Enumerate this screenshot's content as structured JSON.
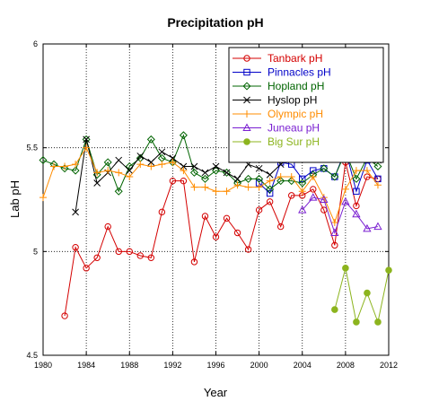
{
  "chart_data": {
    "type": "line",
    "title": "Precipitation pH",
    "xlabel": "Year",
    "ylabel": "Lab pH",
    "xlim": [
      1980,
      2012
    ],
    "ylim": [
      4.5,
      6
    ],
    "xticks": [
      1980,
      1984,
      1988,
      1992,
      1996,
      2000,
      2004,
      2008,
      2012
    ],
    "xtick_labels": [
      "1980",
      "1984",
      "1988",
      "1992",
      "1996",
      "2000",
      "2004",
      "2008",
      "2012"
    ],
    "yticks": [
      4.5,
      5,
      5.5,
      6
    ],
    "ytick_labels": [
      "4.5",
      "5",
      "5.5",
      "6"
    ],
    "grid": "dotted, at major ticks",
    "legend_position": "top-right",
    "series": [
      {
        "name": "Tanbark pH",
        "color": "#d40000",
        "marker": "circle",
        "points": [
          [
            1982,
            4.69
          ],
          [
            1983,
            5.02
          ],
          [
            1984,
            4.92
          ],
          [
            1985,
            4.97
          ],
          [
            1986,
            5.12
          ],
          [
            1987,
            5.0
          ],
          [
            1988,
            5.0
          ],
          [
            1989,
            4.98
          ],
          [
            1990,
            4.97
          ],
          [
            1991,
            5.19
          ],
          [
            1992,
            5.34
          ],
          [
            1993,
            5.34
          ],
          [
            1994,
            4.95
          ],
          [
            1995,
            5.17
          ],
          [
            1996,
            5.07
          ],
          [
            1997,
            5.16
          ],
          [
            1998,
            5.09
          ],
          [
            1999,
            5.01
          ],
          [
            2000,
            5.2
          ],
          [
            2001,
            5.24
          ],
          [
            2002,
            5.12
          ],
          [
            2003,
            5.27
          ],
          [
            2004,
            5.27
          ],
          [
            2005,
            5.3
          ],
          [
            2006,
            5.2
          ],
          [
            2007,
            5.03
          ],
          [
            2008,
            5.43
          ],
          [
            2009,
            5.22
          ],
          [
            2010,
            5.36
          ],
          [
            2011,
            5.35
          ]
        ]
      },
      {
        "name": "Pinnacles pH",
        "color": "#0000c8",
        "marker": "square",
        "points": [
          [
            2000,
            5.33
          ],
          [
            2001,
            5.28
          ],
          [
            2002,
            5.43
          ],
          [
            2003,
            5.42
          ],
          [
            2004,
            5.35
          ],
          [
            2005,
            5.39
          ],
          [
            2006,
            5.4
          ],
          [
            2007,
            5.36
          ],
          [
            2008,
            5.49
          ],
          [
            2009,
            5.29
          ],
          [
            2010,
            5.44
          ],
          [
            2011,
            5.35
          ]
        ]
      },
      {
        "name": "Hopland pH",
        "color": "#006400",
        "marker": "diamond",
        "points": [
          [
            1980,
            5.44
          ],
          [
            1981,
            5.42
          ],
          [
            1982,
            5.4
          ],
          [
            1983,
            5.39
          ],
          [
            1984,
            5.54
          ],
          [
            1985,
            5.37
          ],
          [
            1986,
            5.43
          ],
          [
            1987,
            5.29
          ],
          [
            1988,
            5.41
          ],
          [
            1989,
            5.45
          ],
          [
            1990,
            5.54
          ],
          [
            1991,
            5.45
          ],
          [
            1992,
            5.43
          ],
          [
            1993,
            5.56
          ],
          [
            1994,
            5.38
          ],
          [
            1995,
            5.35
          ],
          [
            1996,
            5.39
          ],
          [
            1997,
            5.38
          ],
          [
            1998,
            5.33
          ],
          [
            1999,
            5.35
          ],
          [
            2000,
            5.35
          ],
          [
            2001,
            5.3
          ],
          [
            2002,
            5.34
          ],
          [
            2003,
            5.34
          ],
          [
            2004,
            5.33
          ],
          [
            2005,
            5.37
          ],
          [
            2006,
            5.4
          ],
          [
            2007,
            5.36
          ],
          [
            2008,
            5.48
          ],
          [
            2009,
            5.35
          ],
          [
            2010,
            5.45
          ],
          [
            2011,
            5.41
          ]
        ]
      },
      {
        "name": "Hyslop pH",
        "color": "#000000",
        "marker": "x",
        "points": [
          [
            1983,
            5.19
          ],
          [
            1984,
            5.54
          ],
          [
            1985,
            5.33
          ],
          [
            1986,
            5.38
          ],
          [
            1987,
            5.44
          ],
          [
            1988,
            5.39
          ],
          [
            1989,
            5.46
          ],
          [
            1990,
            5.43
          ],
          [
            1991,
            5.48
          ],
          [
            1992,
            5.45
          ],
          [
            1993,
            5.41
          ],
          [
            1994,
            5.41
          ],
          [
            1995,
            5.38
          ],
          [
            1996,
            5.41
          ],
          [
            1997,
            5.38
          ],
          [
            1998,
            5.35
          ],
          [
            1999,
            5.42
          ],
          [
            2000,
            5.4
          ],
          [
            2001,
            5.37
          ],
          [
            2002,
            5.42
          ],
          [
            2003,
            5.46
          ],
          [
            2004,
            5.47
          ],
          [
            2005,
            5.49
          ],
          [
            2006,
            5.51
          ],
          [
            2007,
            5.48
          ],
          [
            2008,
            5.49
          ],
          [
            2009,
            5.46
          ],
          [
            2010,
            5.46
          ],
          [
            2011,
            5.44
          ]
        ]
      },
      {
        "name": "Olympic pH",
        "color": "#ff8c00",
        "marker": "plus",
        "points": [
          [
            1980,
            5.26
          ],
          [
            1981,
            5.41
          ],
          [
            1982,
            5.41
          ],
          [
            1983,
            5.42
          ],
          [
            1984,
            5.5
          ],
          [
            1985,
            5.38
          ],
          [
            1986,
            5.39
          ],
          [
            1987,
            5.38
          ],
          [
            1988,
            5.36
          ],
          [
            1989,
            5.42
          ],
          [
            1990,
            5.41
          ],
          [
            1991,
            5.42
          ],
          [
            1992,
            5.43
          ],
          [
            1993,
            5.39
          ],
          [
            1994,
            5.31
          ],
          [
            1995,
            5.31
          ],
          [
            1996,
            5.29
          ],
          [
            1997,
            5.29
          ],
          [
            1998,
            5.32
          ],
          [
            1999,
            5.31
          ],
          [
            2000,
            5.31
          ],
          [
            2001,
            5.34
          ],
          [
            2002,
            5.36
          ],
          [
            2003,
            5.36
          ],
          [
            2004,
            5.29
          ],
          [
            2005,
            5.36
          ],
          [
            2006,
            5.26
          ],
          [
            2007,
            5.14
          ],
          [
            2008,
            5.3
          ],
          [
            2009,
            5.39
          ],
          [
            2010,
            5.39
          ],
          [
            2011,
            5.32
          ]
        ]
      },
      {
        "name": "Juneau pH",
        "color": "#7a1fd1",
        "marker": "triangle",
        "points": [
          [
            2004,
            5.2
          ],
          [
            2005,
            5.26
          ],
          [
            2006,
            5.25
          ],
          [
            2007,
            5.09
          ],
          [
            2008,
            5.24
          ],
          [
            2009,
            5.18
          ],
          [
            2010,
            5.11
          ],
          [
            2011,
            5.12
          ]
        ]
      },
      {
        "name": "Big Sur pH",
        "color": "#8cb41e",
        "marker": "filled-circle",
        "points": [
          [
            2007,
            4.72
          ],
          [
            2008,
            4.92
          ],
          [
            2009,
            4.66
          ],
          [
            2010,
            4.8
          ],
          [
            2011,
            4.66
          ],
          [
            2012,
            4.91
          ]
        ]
      }
    ]
  }
}
